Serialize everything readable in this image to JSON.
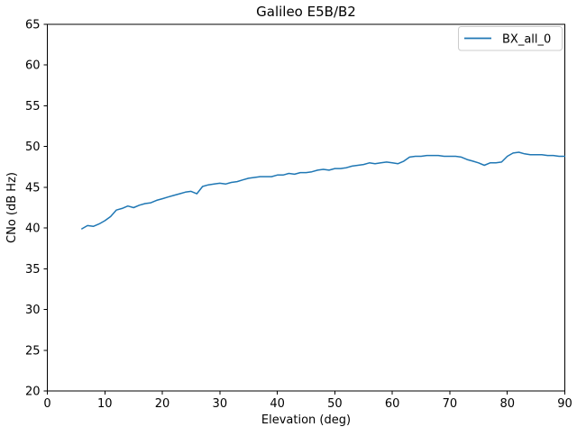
{
  "figure": {
    "background": "#ffffff",
    "spine_color": "#000000",
    "text_color": "#000000"
  },
  "legend": {
    "border_color": "#cccccc",
    "background": "#ffffff"
  },
  "chart_data": {
    "type": "line",
    "title": "Galileo E5B/B2",
    "xlabel": "Elevation (deg)",
    "ylabel": "CNo (dB Hz)",
    "xlim": [
      0,
      90
    ],
    "ylim": [
      20,
      65
    ],
    "xticks": [
      0,
      10,
      20,
      30,
      40,
      50,
      60,
      70,
      80,
      90
    ],
    "yticks": [
      20,
      25,
      30,
      35,
      40,
      45,
      50,
      55,
      60,
      65
    ],
    "grid": false,
    "legend_position": "upper right",
    "series": [
      {
        "name": "BX_all_0",
        "color": "#1f77b4",
        "line_width": 1.5,
        "x": [
          6,
          7,
          8,
          9,
          10,
          11,
          12,
          13,
          14,
          15,
          16,
          17,
          18,
          19,
          20,
          21,
          22,
          23,
          24,
          25,
          26,
          27,
          28,
          29,
          30,
          31,
          32,
          33,
          34,
          35,
          36,
          37,
          38,
          39,
          40,
          41,
          42,
          43,
          44,
          45,
          46,
          47,
          48,
          49,
          50,
          51,
          52,
          53,
          54,
          55,
          56,
          57,
          58,
          59,
          60,
          61,
          62,
          63,
          64,
          65,
          66,
          67,
          68,
          69,
          70,
          71,
          72,
          73,
          74,
          75,
          76,
          77,
          78,
          79,
          80,
          81,
          82,
          83,
          84,
          85,
          86,
          87,
          88,
          89,
          90
        ],
        "y": [
          39.9,
          40.3,
          40.2,
          40.5,
          40.9,
          41.4,
          42.2,
          42.4,
          42.7,
          42.5,
          42.8,
          43.0,
          43.1,
          43.4,
          43.6,
          43.8,
          44.0,
          44.2,
          44.4,
          44.5,
          44.2,
          45.1,
          45.3,
          45.4,
          45.5,
          45.4,
          45.6,
          45.7,
          45.9,
          46.1,
          46.2,
          46.3,
          46.3,
          46.3,
          46.5,
          46.5,
          46.7,
          46.6,
          46.8,
          46.8,
          46.9,
          47.1,
          47.2,
          47.1,
          47.3,
          47.3,
          47.4,
          47.6,
          47.7,
          47.8,
          48.0,
          47.9,
          48.0,
          48.1,
          48.0,
          47.9,
          48.2,
          48.7,
          48.8,
          48.8,
          48.9,
          48.9,
          48.9,
          48.8,
          48.8,
          48.8,
          48.7,
          48.4,
          48.2,
          48.0,
          47.7,
          48.0,
          48.0,
          48.1,
          48.8,
          49.2,
          49.3,
          49.1,
          49.0,
          49.0,
          49.0,
          48.9,
          48.9,
          48.8,
          48.8
        ]
      }
    ]
  }
}
